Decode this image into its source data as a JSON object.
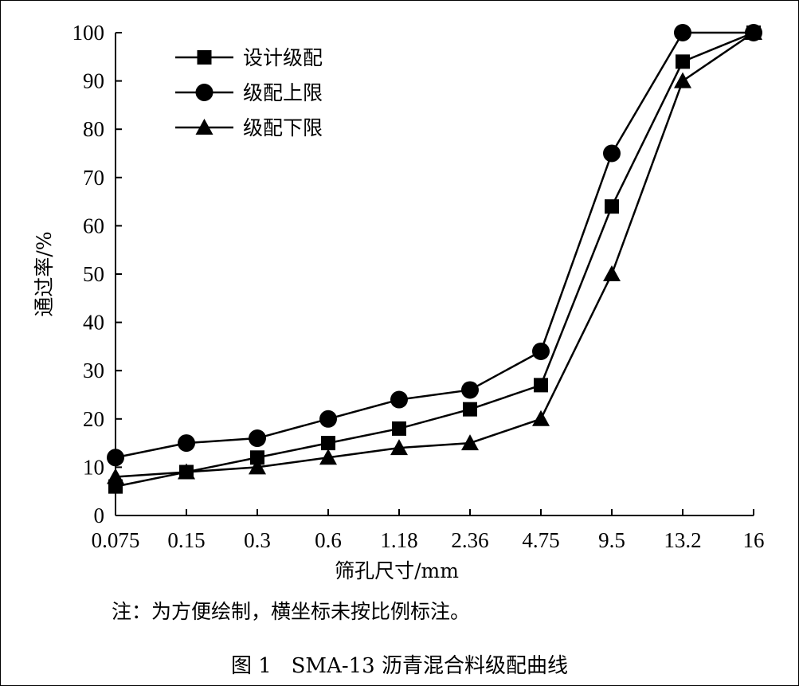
{
  "chart_data": {
    "type": "line",
    "categories": [
      "0.075",
      "0.15",
      "0.3",
      "0.6",
      "1.18",
      "2.36",
      "4.75",
      "9.5",
      "13.2",
      "16"
    ],
    "series": [
      {
        "name": "设计级配",
        "marker": "square",
        "values": [
          6,
          9,
          12,
          15,
          18,
          22,
          27,
          64,
          94,
          100
        ]
      },
      {
        "name": "级配上限",
        "marker": "circle",
        "values": [
          12,
          15,
          16,
          20,
          24,
          26,
          34,
          75,
          100,
          100
        ]
      },
      {
        "name": "级配下限",
        "marker": "triangle",
        "values": [
          8,
          9,
          10,
          12,
          14,
          15,
          20,
          50,
          90,
          100
        ]
      }
    ],
    "xlabel": "筛孔尺寸/mm",
    "ylabel": "通过率/%",
    "ylim": [
      0,
      100
    ],
    "yticks": [
      0,
      10,
      20,
      30,
      40,
      50,
      60,
      70,
      80,
      90,
      100
    ],
    "grid": false,
    "legend_position": "top-left",
    "line_color": "#000000"
  },
  "note": "注：为方便绘制，横坐标未按比例标注。",
  "caption": "图 1   SMA-13 沥青混合料级配曲线"
}
